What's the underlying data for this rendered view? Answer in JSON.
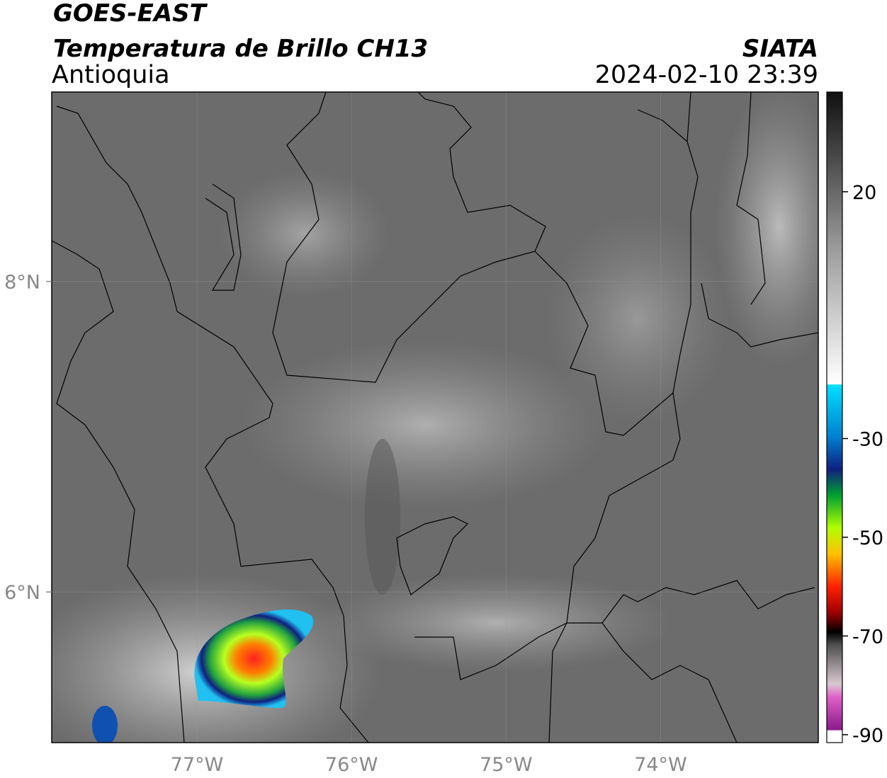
{
  "header": {
    "title": "GOES-EAST",
    "subtitle": "Temperatura de Brillo CH13",
    "region": "Antioquia",
    "source": "SIATA",
    "datetime": "2024-02-10 23:39"
  },
  "map": {
    "lonlim": [
      -77.94,
      -72.98
    ],
    "latlim": [
      5.03,
      9.22
    ],
    "lon_ticks": [
      {
        "value": -77,
        "label": "77°W"
      },
      {
        "value": -76,
        "label": "76°W"
      },
      {
        "value": -75,
        "label": "75°W"
      },
      {
        "value": -74,
        "label": "74°W"
      }
    ],
    "lat_ticks": [
      {
        "value": 8,
        "label": "8°N"
      },
      {
        "value": 6,
        "label": "6°N"
      }
    ]
  },
  "colorbar": {
    "lim": [
      -91.6,
      40.2
    ],
    "ticks": [
      20,
      -30,
      -50,
      -70,
      -90
    ]
  }
}
